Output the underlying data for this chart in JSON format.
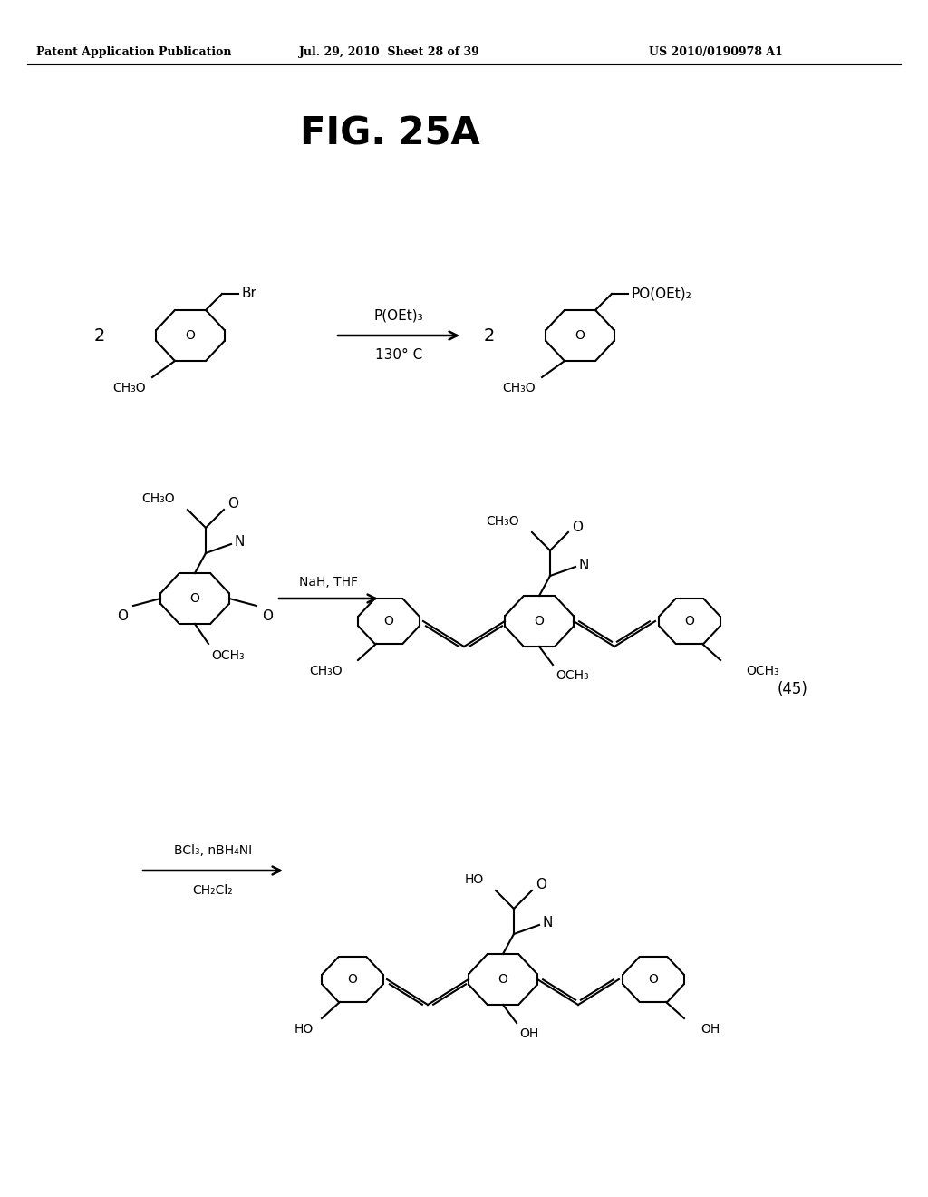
{
  "title": "FIG. 25A",
  "header_left": "Patent Application Publication",
  "header_center": "Jul. 29, 2010  Sheet 28 of 39",
  "header_right": "US 2010/0190978 A1",
  "background_color": "#ffffff",
  "figsize": [
    10.24,
    13.2
  ],
  "dpi": 100
}
